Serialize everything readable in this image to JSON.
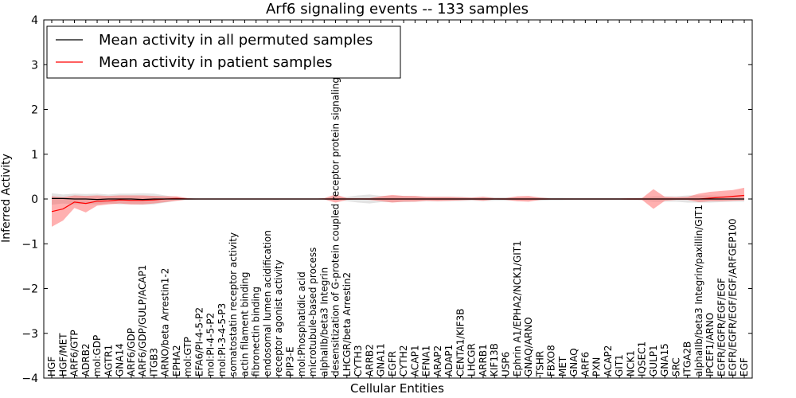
{
  "chart_data": {
    "type": "line",
    "title": "Arf6 signaling events -- 133 samples",
    "xlabel": "Cellular Entities",
    "ylabel": "Inferred Activity",
    "ylim": [
      -4,
      4
    ],
    "yticks": [
      -4,
      -3,
      -2,
      -1,
      0,
      1,
      2,
      3,
      4
    ],
    "legend_position": "top-left",
    "grid": false,
    "categories": [
      "HGF",
      "HGF/MET",
      "ARF6/GTP",
      "ADRB2",
      "mol:GDP",
      "AGTR1",
      "GNA14",
      "ARF6/GDP",
      "ARF6/GDP/GULP/ACAP1",
      "ITGB3",
      "ARNO/beta Arrestin1-2",
      "EPHA2",
      "mol:GTP",
      "EFA6/PI-4-5-P2",
      "mol:PI-4-5-P2",
      "mol:PI-3-4-5-P3",
      "somatostatin receptor activity",
      "actin filament binding",
      "fibronectin binding",
      "endosomal lumen acidification",
      "receptor agonist activity",
      "PIP3-E",
      "mol:Phosphatidic acid",
      "microtubule-based process",
      "alphaIIb/beta3 Integrin",
      "desensitization of G-protein coupled receptor protein signaling pathway",
      "LHCGR/beta Arrestin2",
      "CYTH3",
      "ARRB2",
      "GNA11",
      "EGFR",
      "CYTH2",
      "ACAP1",
      "EFNA1",
      "ARAP2",
      "ADAP1",
      "CENTA1/KIF3B",
      "LHCGR",
      "ARRB1",
      "KIF13B",
      "USP6",
      "Ephrin A1/EPHA2/NCK1/GIT1",
      "GNAQ/ARNO",
      "TSHR",
      "FBXO8",
      "MET",
      "GNAQ",
      "ARF6",
      "PXN",
      "ACAP2",
      "GIT1",
      "NCK1",
      "IQSEC1",
      "GULP1",
      "GNA15",
      "SRC",
      "ITGA2B",
      "alphaIIb/beta3 Integrin/paxillin/GIT1",
      "IPCEF1/ARNO",
      "EGFR/EGFR/EGF/EGF",
      "EGFR/EGFR/EGF/EGF/ARFGEP100",
      "EGF"
    ],
    "series": [
      {
        "name": "Mean activity in all permuted samples",
        "color": "#000000",
        "band_color": "#b0b0b0",
        "values": [
          0.01,
          0.01,
          0.0,
          0.0,
          -0.01,
          0.0,
          0.0,
          0.0,
          -0.01,
          0.0,
          0.0,
          0.0,
          0.0,
          0.0,
          0.0,
          0.0,
          0.0,
          0.0,
          0.0,
          0.0,
          0.0,
          0.0,
          0.0,
          0.0,
          0.0,
          0.0,
          0.0,
          0.0,
          0.0,
          0.0,
          0.0,
          0.0,
          0.0,
          0.0,
          0.0,
          0.0,
          0.0,
          0.0,
          0.0,
          0.0,
          0.0,
          0.0,
          0.0,
          0.0,
          0.0,
          0.0,
          0.0,
          0.0,
          0.0,
          0.0,
          0.0,
          0.0,
          0.0,
          0.0,
          0.0,
          0.0,
          0.0,
          0.0,
          0.0,
          0.0,
          0.0,
          0.0
        ],
        "lower": [
          -0.13,
          -0.1,
          -0.12,
          -0.11,
          -0.12,
          -0.1,
          -0.12,
          -0.12,
          -0.13,
          -0.12,
          -0.08,
          -0.04,
          -0.02,
          -0.01,
          -0.01,
          -0.01,
          -0.01,
          -0.01,
          -0.01,
          -0.01,
          -0.01,
          -0.01,
          -0.01,
          -0.01,
          -0.01,
          -0.04,
          -0.05,
          -0.08,
          -0.1,
          -0.07,
          -0.07,
          -0.07,
          -0.06,
          -0.05,
          -0.05,
          -0.05,
          -0.05,
          -0.04,
          -0.05,
          -0.04,
          -0.04,
          -0.04,
          -0.04,
          -0.04,
          -0.03,
          -0.03,
          -0.02,
          -0.02,
          -0.02,
          -0.02,
          -0.02,
          -0.02,
          -0.03,
          -0.06,
          -0.06,
          -0.06,
          -0.08,
          -0.08,
          -0.08,
          -0.07,
          -0.06,
          -0.06
        ],
        "upper": [
          0.13,
          0.1,
          0.12,
          0.11,
          0.12,
          0.1,
          0.12,
          0.12,
          0.13,
          0.12,
          0.08,
          0.04,
          0.02,
          0.01,
          0.01,
          0.01,
          0.01,
          0.01,
          0.01,
          0.01,
          0.01,
          0.01,
          0.01,
          0.01,
          0.01,
          0.04,
          0.05,
          0.08,
          0.1,
          0.07,
          0.07,
          0.07,
          0.06,
          0.05,
          0.05,
          0.05,
          0.05,
          0.04,
          0.05,
          0.04,
          0.04,
          0.04,
          0.04,
          0.04,
          0.03,
          0.03,
          0.02,
          0.02,
          0.02,
          0.02,
          0.02,
          0.02,
          0.03,
          0.06,
          0.06,
          0.06,
          0.08,
          0.08,
          0.08,
          0.07,
          0.06,
          0.06
        ]
      },
      {
        "name": "Mean activity in patient samples",
        "color": "#ff0000",
        "band_color": "#ff5050",
        "values": [
          -0.28,
          -0.22,
          -0.07,
          -0.1,
          -0.05,
          -0.04,
          -0.02,
          -0.03,
          -0.03,
          -0.02,
          0.0,
          0.01,
          0.0,
          0.0,
          0.0,
          0.0,
          0.0,
          0.0,
          0.0,
          0.0,
          0.0,
          0.0,
          0.0,
          0.0,
          0.0,
          0.0,
          0.0,
          0.0,
          0.0,
          0.0,
          0.0,
          0.0,
          0.0,
          0.0,
          0.0,
          0.0,
          0.0,
          0.0,
          0.0,
          0.0,
          0.0,
          0.0,
          0.0,
          0.0,
          0.0,
          0.0,
          0.0,
          0.0,
          0.0,
          0.0,
          0.0,
          0.0,
          0.0,
          0.0,
          0.0,
          0.0,
          0.0,
          0.0,
          0.02,
          0.04,
          0.06,
          0.08
        ],
        "lower": [
          -0.62,
          -0.48,
          -0.2,
          -0.3,
          -0.15,
          -0.12,
          -0.1,
          -0.12,
          -0.12,
          -0.1,
          -0.07,
          -0.04,
          -0.01,
          0.0,
          0.0,
          0.0,
          0.0,
          0.0,
          0.0,
          0.0,
          0.0,
          0.0,
          0.0,
          0.0,
          -0.01,
          -0.08,
          -0.02,
          -0.01,
          -0.02,
          -0.05,
          -0.08,
          -0.06,
          -0.06,
          -0.04,
          -0.05,
          -0.04,
          -0.03,
          -0.02,
          -0.04,
          -0.01,
          -0.02,
          -0.05,
          -0.06,
          -0.02,
          -0.01,
          -0.01,
          -0.01,
          -0.01,
          -0.01,
          -0.01,
          -0.01,
          -0.02,
          -0.02,
          -0.22,
          -0.04,
          -0.02,
          -0.02,
          -0.07,
          -0.05,
          -0.05,
          -0.04,
          -0.03
        ],
        "upper": [
          0.06,
          0.04,
          0.08,
          0.07,
          0.08,
          0.07,
          0.08,
          0.08,
          0.08,
          0.07,
          0.06,
          0.06,
          0.02,
          0.0,
          0.0,
          0.0,
          0.0,
          0.0,
          0.0,
          0.0,
          0.0,
          0.0,
          0.0,
          0.0,
          0.02,
          0.1,
          0.02,
          0.02,
          0.02,
          0.06,
          0.09,
          0.07,
          0.07,
          0.05,
          0.05,
          0.05,
          0.04,
          0.03,
          0.05,
          0.02,
          0.02,
          0.06,
          0.07,
          0.03,
          0.01,
          0.01,
          0.01,
          0.01,
          0.01,
          0.01,
          0.01,
          0.02,
          0.02,
          0.22,
          0.05,
          0.04,
          0.05,
          0.12,
          0.16,
          0.18,
          0.2,
          0.25
        ]
      }
    ]
  }
}
